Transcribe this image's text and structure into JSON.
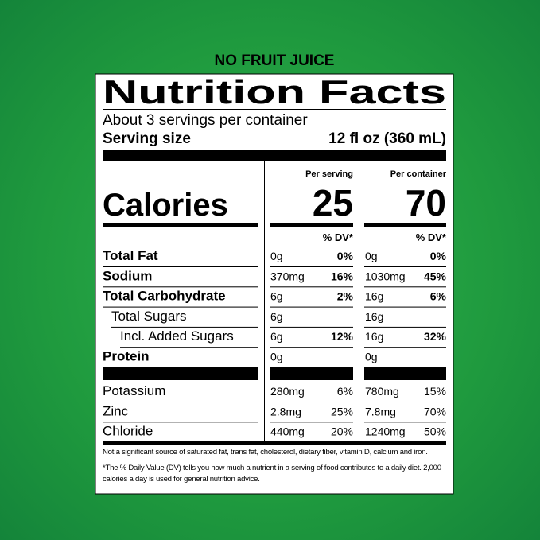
{
  "header": "NO FRUIT JUICE",
  "label": {
    "title": "Nutrition Facts",
    "servings": "About 3 servings per container",
    "serving_size_label": "Serving size",
    "serving_size": "12 fl oz (360 mL)",
    "calories_label": "Calories",
    "columns": [
      {
        "heading": "Per serving",
        "calories": 25,
        "dv_heading": "% DV*"
      },
      {
        "heading": "Per container",
        "calories": 70,
        "dv_heading": "% DV*"
      }
    ],
    "rows": [
      {
        "name": "Total Fat",
        "bold": true,
        "indent": 0,
        "serving": [
          "0g",
          "0%"
        ],
        "container": [
          "0g",
          "0%"
        ]
      },
      {
        "name": "Sodium",
        "bold": true,
        "indent": 0,
        "serving": [
          "370mg",
          "16%"
        ],
        "container": [
          "1030mg",
          "45%"
        ]
      },
      {
        "name": "Total Carbohydrate",
        "bold": true,
        "indent": 0,
        "serving": [
          "6g",
          "2%"
        ],
        "container": [
          "16g",
          "6%"
        ]
      },
      {
        "name": "Total Sugars",
        "bold": false,
        "indent": 1,
        "serving": [
          "6g"
        ],
        "container": [
          "16g"
        ]
      },
      {
        "name": "Incl. Added Sugars",
        "bold": false,
        "indent": 2,
        "serving": [
          "6g",
          "12%"
        ],
        "container": [
          "16g",
          "32%"
        ]
      },
      {
        "name": "Protein",
        "bold": true,
        "indent": 0,
        "serving": [
          "0g"
        ],
        "container": [
          "0g"
        ]
      }
    ],
    "minerals": [
      {
        "name": "Potassium",
        "serving": [
          "280mg",
          "6%"
        ],
        "container": [
          "780mg",
          "15%"
        ]
      },
      {
        "name": "Zinc",
        "serving": [
          "2.8mg",
          "25%"
        ],
        "container": [
          "7.8mg",
          "70%"
        ]
      },
      {
        "name": "Chloride",
        "serving": [
          "440mg",
          "20%"
        ],
        "container": [
          "1240mg",
          "50%"
        ]
      }
    ],
    "footnotes": [
      "Not a significant source of saturated fat, trans fat, cholesterol, dietary fiber, vitamin D, calcium and iron.",
      "*The % Daily Value (DV) tells you how much a nutrient in a serving of food contributes to a daily diet. 2,000 calories a day is used for general nutrition advice."
    ]
  }
}
